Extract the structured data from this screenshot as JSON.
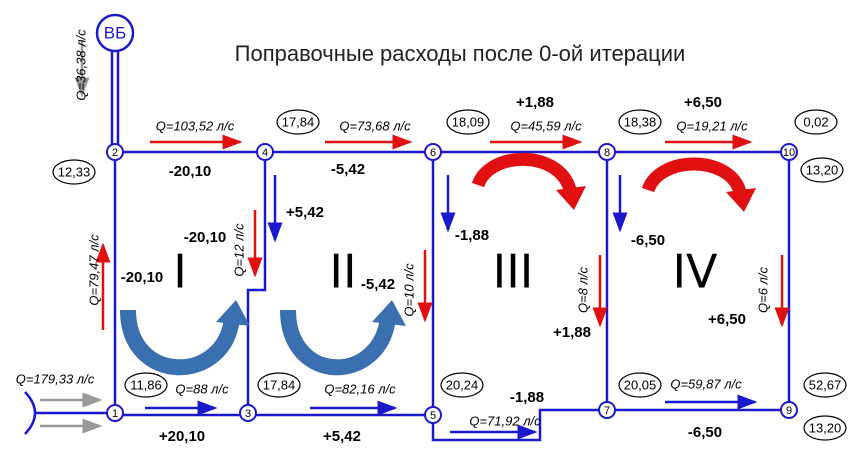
{
  "title": "Поправочные расходы после 0-ой итерации",
  "tower": "ВБ",
  "nodes": [
    "1",
    "2",
    "3",
    "4",
    "5",
    "6",
    "7",
    "8",
    "9",
    "10"
  ],
  "node_values": [
    "12,33",
    "17,84",
    "18,09",
    "18,38",
    "0,02",
    "13,20",
    "11,86",
    "17,84",
    "20,24",
    "20,05",
    "52,67",
    "13,20"
  ],
  "flows": [
    "Q=36,38 л/с",
    "Q=103,52 л/с",
    "Q=73,68 л/с",
    "Q=45,59 л/с",
    "Q=19,21 л/с",
    "Q=79,47 л/с",
    "Q=12 л/с",
    "Q=10 л/с",
    "Q=8 л/с",
    "Q=6 л/с",
    "Q=179,33 л/с",
    "Q=88 л/с",
    "Q=82,16 л/с",
    "Q=71,92 л/с",
    "Q=59,87 л/с"
  ],
  "corrections": [
    "-20,10",
    "-5,42",
    "+1,88",
    "+6,50",
    "+5,42",
    "-20,10",
    "-1,88",
    "-6,50",
    "-20,10",
    "-5,42",
    "+1,88",
    "+6,50",
    "+20,10",
    "+5,42",
    "-1,88",
    "-6,50"
  ],
  "loops": [
    "I",
    "II",
    "III",
    "IV"
  ]
}
